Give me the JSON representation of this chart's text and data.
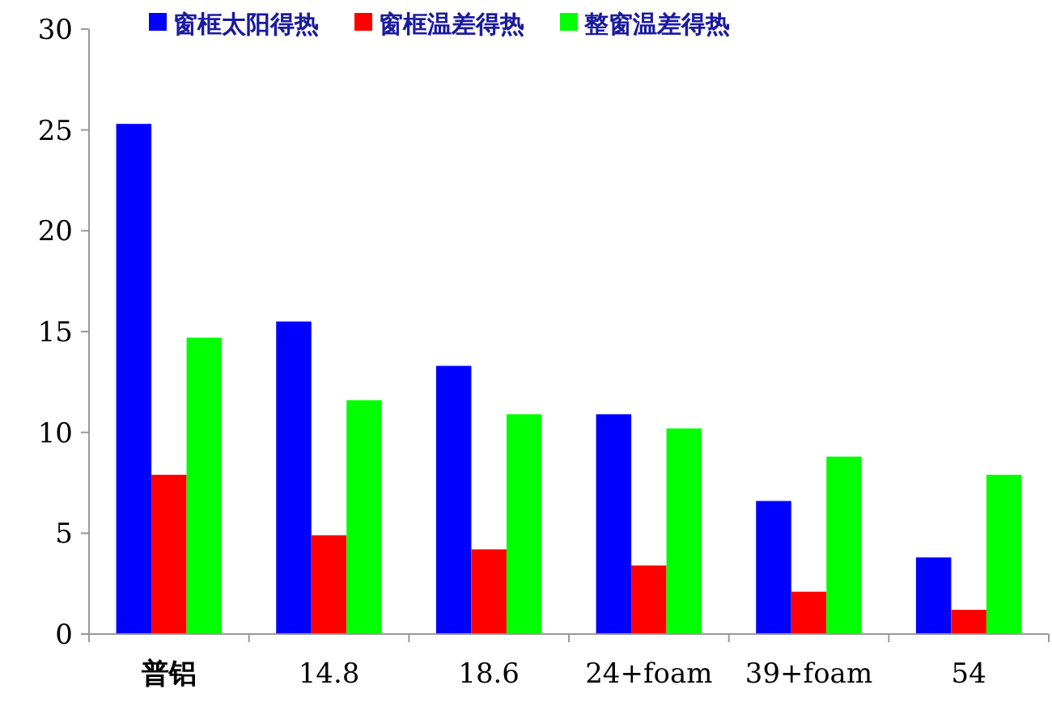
{
  "chart_data": {
    "type": "bar",
    "categories": [
      "普铝",
      "14.8",
      "18.6",
      "24+foam",
      "39+foam",
      "54"
    ],
    "series": [
      {
        "name": "窗框太阳得热",
        "color": "#0000ff",
        "values": [
          25.3,
          15.5,
          13.3,
          10.9,
          6.6,
          3.8
        ]
      },
      {
        "name": "窗框温差得热",
        "color": "#ff0000",
        "values": [
          7.9,
          4.9,
          4.2,
          3.4,
          2.1,
          1.2
        ]
      },
      {
        "name": "整窗温差得热",
        "color": "#00ff00",
        "values": [
          14.7,
          11.6,
          10.9,
          10.2,
          8.8,
          7.9
        ]
      }
    ],
    "ylim": [
      0,
      30
    ],
    "yticks": [
      0,
      5,
      10,
      15,
      20,
      25,
      30
    ],
    "legend": "top",
    "grid": false
  }
}
